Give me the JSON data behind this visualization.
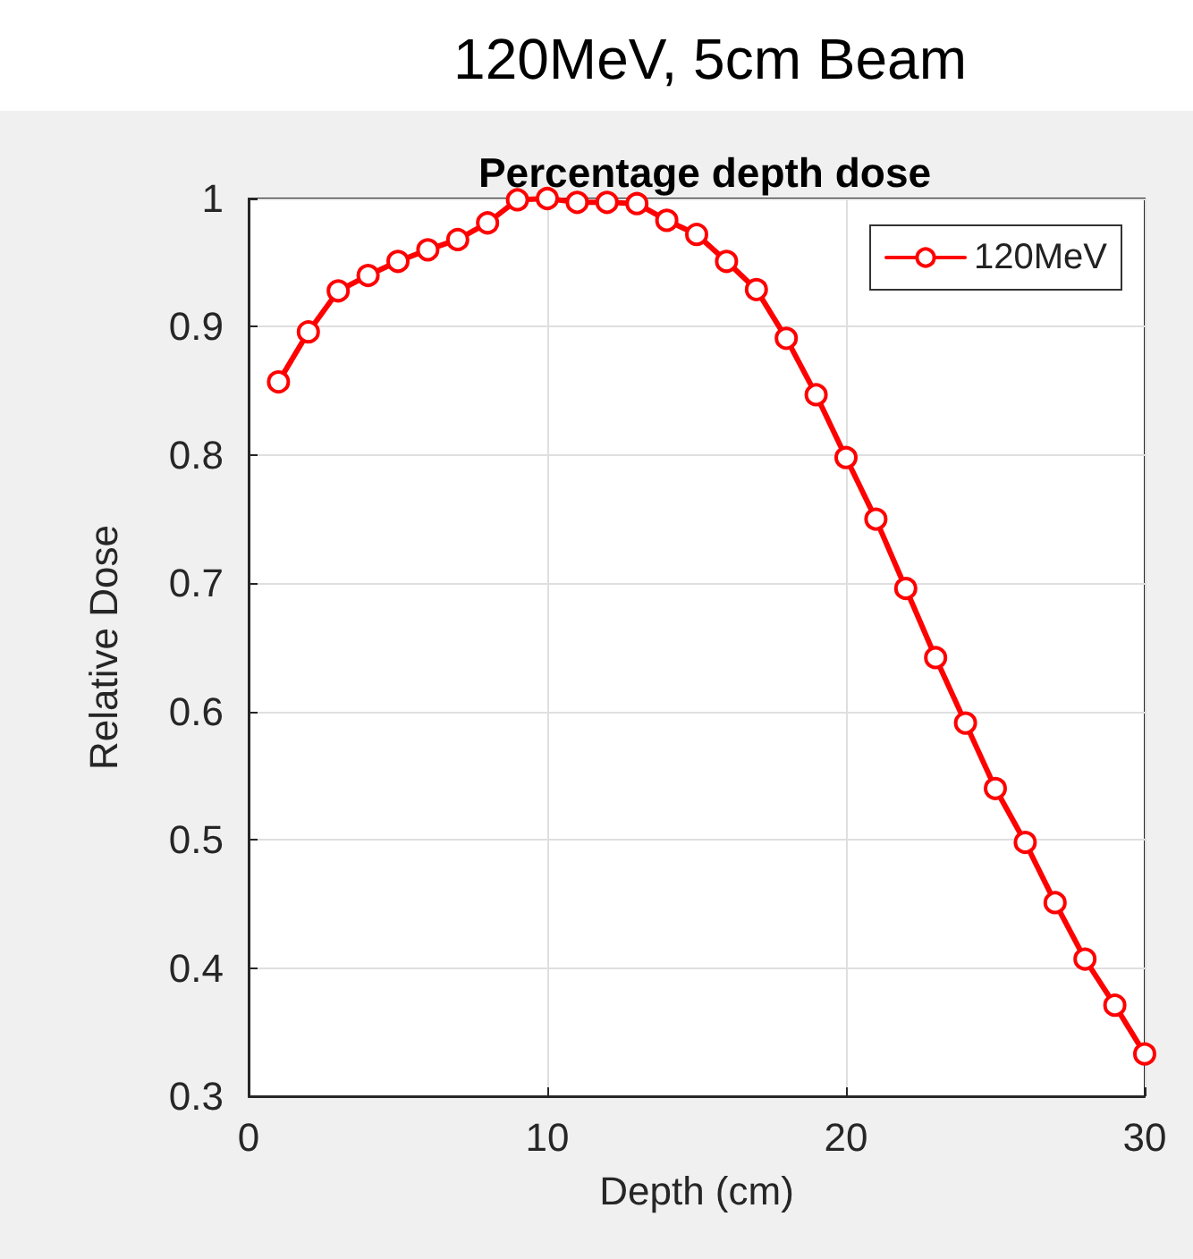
{
  "chart_data": {
    "type": "line",
    "title": "120MeV, 5cm Beam",
    "subtitle": "Percentage depth dose",
    "xlabel": "Depth (cm)",
    "ylabel": "Relative Dose",
    "x": [
      1,
      2,
      3,
      4,
      5,
      6,
      7,
      8,
      9,
      10,
      11,
      12,
      13,
      14,
      15,
      16,
      17,
      18,
      19,
      20,
      21,
      22,
      23,
      24,
      25,
      26,
      27,
      28,
      29,
      30
    ],
    "series": [
      {
        "name": "120MeV",
        "color": "#ff0000",
        "values": [
          0.857,
          0.896,
          0.928,
          0.94,
          0.951,
          0.96,
          0.968,
          0.981,
          0.999,
          1.0,
          0.997,
          0.997,
          0.996,
          0.983,
          0.972,
          0.951,
          0.929,
          0.891,
          0.847,
          0.798,
          0.75,
          0.696,
          0.642,
          0.591,
          0.54,
          0.498,
          0.451,
          0.407,
          0.371,
          0.333
        ]
      }
    ],
    "xlim": [
      0,
      30
    ],
    "xticks": [
      0,
      10,
      20,
      30
    ],
    "ylim": [
      0.3,
      1
    ],
    "yticks": [
      0.3,
      0.4,
      0.5,
      0.6,
      0.7,
      0.8,
      0.9,
      1
    ],
    "grid": true,
    "legend": "top right",
    "marker": "circle",
    "line_style": "solid"
  }
}
